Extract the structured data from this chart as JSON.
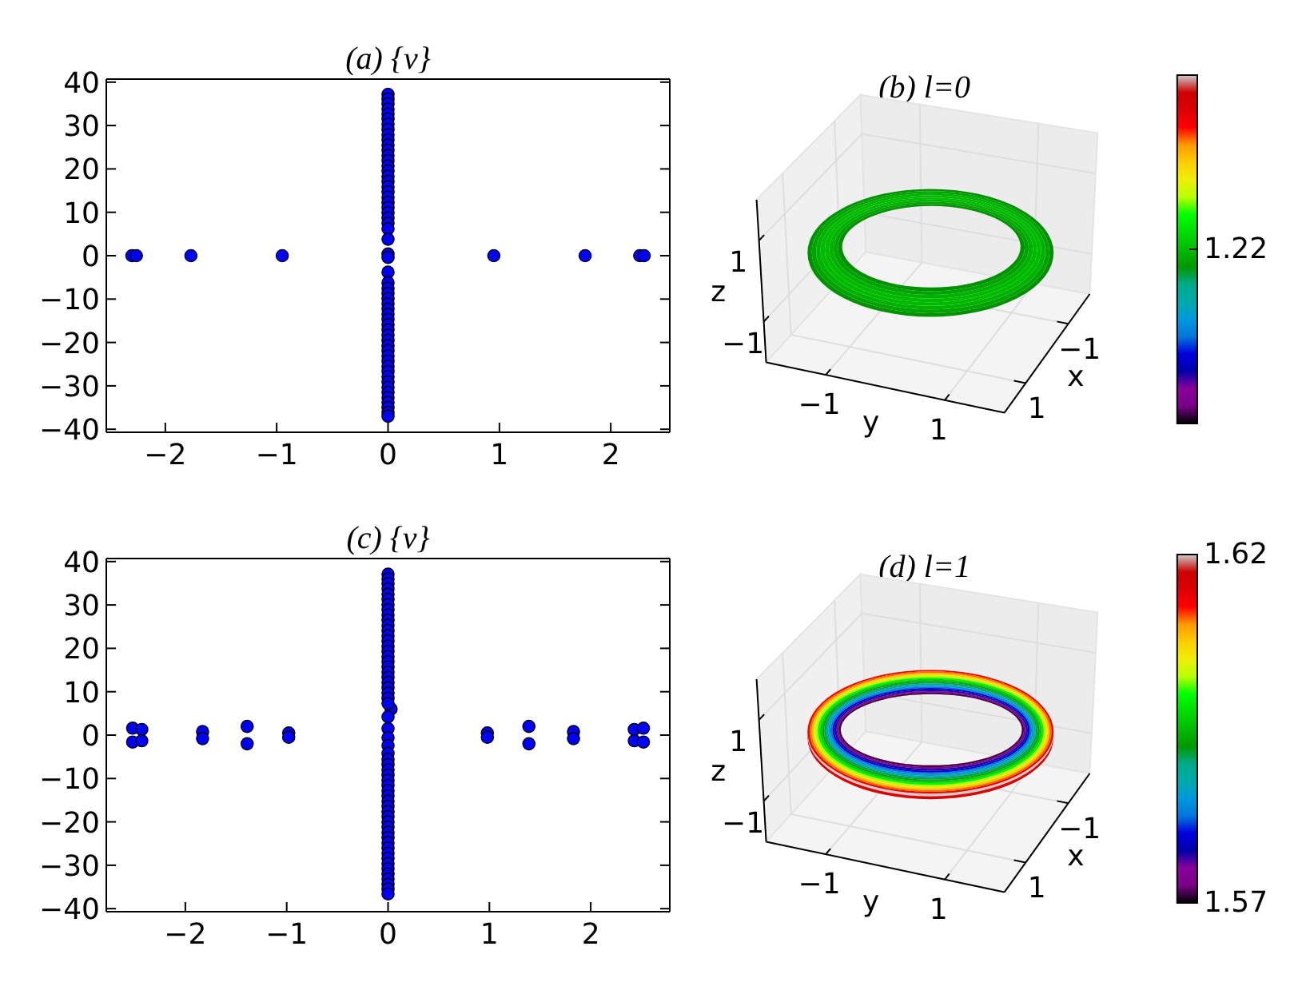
{
  "chart_data": [
    {
      "type": "scatter",
      "title": "(a) {ν}",
      "marker": "circle",
      "xlim": [
        -2.53,
        2.53
      ],
      "ylim": [
        -40.7,
        40.7
      ],
      "xticks": [
        -2,
        -1,
        0,
        1,
        2
      ],
      "yticks": [
        -40,
        -30,
        -20,
        -10,
        0,
        10,
        20,
        30,
        40
      ],
      "series": [
        {
          "color": "#0000ff",
          "x": [
            -2.3,
            -2.26,
            -1.77,
            -0.95,
            0.95,
            1.77,
            2.26,
            2.3,
            0,
            0,
            0,
            0,
            0,
            0,
            0,
            0,
            0,
            0,
            0,
            0,
            0,
            0,
            0,
            0,
            0,
            0,
            0,
            0,
            0,
            0,
            0,
            0,
            0,
            0,
            0,
            0,
            0,
            0,
            0,
            0,
            0,
            0,
            0,
            0,
            0,
            0,
            0,
            0,
            0,
            0,
            0,
            0,
            0,
            0,
            0,
            0,
            0,
            0,
            0,
            0,
            0,
            0,
            0,
            0,
            0,
            0
          ],
          "values": [
            0,
            0,
            0,
            0,
            0,
            0,
            0,
            0,
            37.2,
            36.1,
            35.0,
            33.8,
            32.7,
            31.5,
            30.3,
            29.1,
            27.9,
            26.7,
            25.5,
            24.3,
            23.1,
            21.9,
            20.7,
            19.5,
            18.3,
            17.1,
            15.9,
            14.7,
            13.5,
            12.3,
            11.1,
            9.9,
            8.7,
            7.5,
            6.2,
            3.8,
            0.4,
            -0.4,
            -3.8,
            -6.2,
            -7.5,
            -8.7,
            -9.9,
            -11.1,
            -12.3,
            -13.5,
            -14.7,
            -15.9,
            -17.1,
            -18.3,
            -19.5,
            -20.7,
            -21.9,
            -23.1,
            -24.3,
            -25.5,
            -26.7,
            -27.9,
            -29.1,
            -30.3,
            -31.5,
            -32.7,
            -33.8,
            -35.0,
            -36.1,
            -37.0
          ]
        }
      ]
    },
    {
      "type": "other",
      "title": "(b) l=0",
      "xlabel": "x",
      "ylabel": "y",
      "y2label": "z",
      "annotations": [
        "−1",
        "1",
        "−1",
        "1",
        "1",
        "−1",
        "1.22"
      ]
    },
    {
      "type": "scatter",
      "title": "(c) {ν}",
      "marker": "circle",
      "xlim": [
        -2.78,
        2.78
      ],
      "ylim": [
        -40.7,
        40.7
      ],
      "xticks": [
        -2,
        -1,
        0,
        1,
        2
      ],
      "yticks": [
        -40,
        -30,
        -20,
        -10,
        0,
        10,
        20,
        30,
        40
      ],
      "series": [
        {
          "color": "#0000ff",
          "x": [
            -2.52,
            -2.52,
            -2.43,
            -2.43,
            -1.83,
            -1.83,
            -1.39,
            -1.39,
            -0.98,
            -0.98,
            0.98,
            0.98,
            1.39,
            1.39,
            1.83,
            1.83,
            2.43,
            2.43,
            2.52,
            2.52,
            0.03,
            0,
            0,
            0,
            0,
            0,
            0,
            0,
            0,
            0,
            0,
            0,
            0,
            0,
            0,
            0,
            0,
            0,
            0,
            0,
            0,
            0,
            0,
            0,
            0,
            0,
            0,
            0,
            0,
            0,
            0,
            0,
            0,
            0,
            0,
            0,
            0,
            0,
            0,
            0,
            0,
            0,
            0,
            0,
            0,
            0,
            0,
            0,
            0,
            0,
            0,
            0,
            0,
            0,
            0,
            0,
            0,
            0,
            0
          ],
          "values": [
            1.6,
            -1.6,
            1.3,
            -1.3,
            0.8,
            -0.8,
            2.0,
            -2.0,
            0.5,
            -0.5,
            0.5,
            -0.5,
            2.0,
            -2.0,
            0.8,
            -0.8,
            1.3,
            -1.3,
            1.6,
            -1.6,
            6.0,
            37.1,
            36.0,
            34.9,
            33.7,
            32.5,
            31.3,
            30.1,
            28.9,
            27.7,
            26.5,
            25.3,
            24.1,
            22.9,
            21.7,
            20.5,
            19.3,
            18.1,
            16.9,
            15.7,
            14.5,
            13.3,
            12.1,
            10.9,
            9.7,
            8.5,
            7.3,
            4.2,
            1.5,
            -0.6,
            -2.4,
            -4.2,
            -5.6,
            -6.8,
            -8.0,
            -9.2,
            -10.4,
            -11.6,
            -12.8,
            -14.0,
            -15.2,
            -16.4,
            -17.6,
            -18.8,
            -20.0,
            -21.2,
            -22.4,
            -23.6,
            -24.8,
            -26.0,
            -27.2,
            -28.4,
            -29.6,
            -30.8,
            -32.0,
            -33.2,
            -34.4,
            -35.5,
            -36.6
          ]
        }
      ]
    },
    {
      "type": "other",
      "title": "(d) l=1",
      "xlabel": "x",
      "ylabel": "y",
      "y2label": "z",
      "annotations": [
        "−1",
        "1",
        "−1",
        "1",
        "1",
        "−1",
        "1.62",
        "1.57"
      ]
    }
  ]
}
